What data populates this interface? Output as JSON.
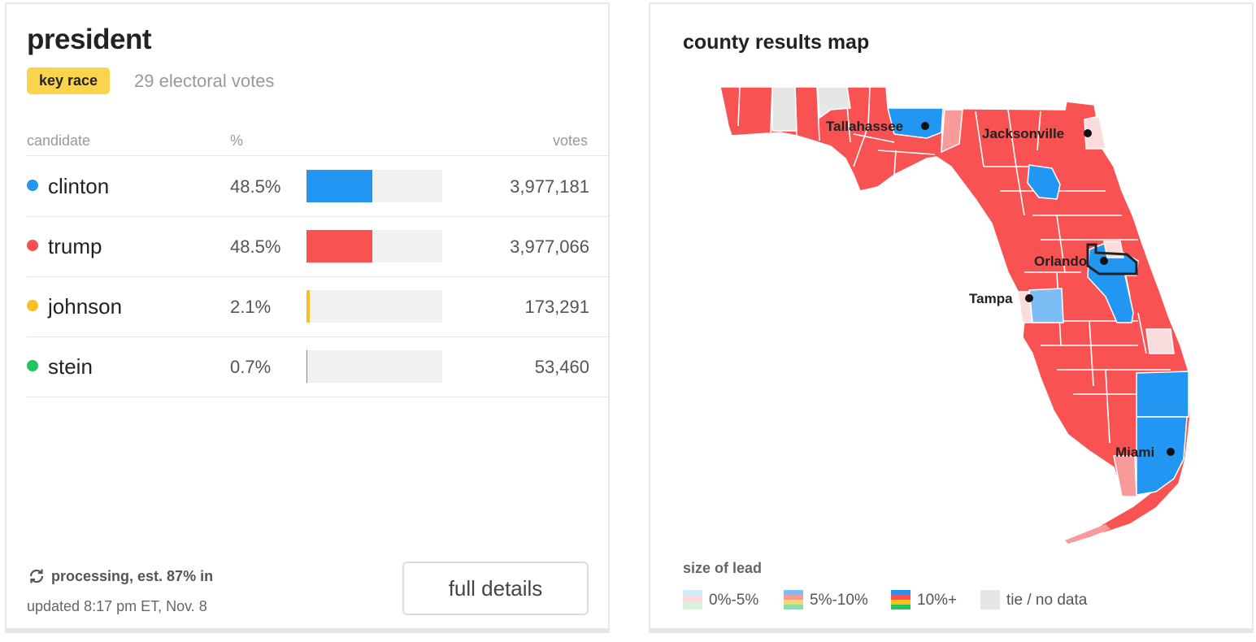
{
  "race": {
    "title": "president",
    "badge": "key race",
    "electoral_votes": "29 electoral votes"
  },
  "table": {
    "headers": {
      "candidate": "candidate",
      "percent": "%",
      "votes": "votes"
    },
    "candidates": [
      {
        "name": "clinton",
        "percent": "48.5%",
        "share": 0.485,
        "votes": "3,977,181",
        "color": "#2196f3"
      },
      {
        "name": "trump",
        "percent": "48.5%",
        "share": 0.485,
        "votes": "3,977,066",
        "color": "#f85252"
      },
      {
        "name": "johnson",
        "percent": "2.1%",
        "share": 0.021,
        "votes": "173,291",
        "color": "#fbbf24"
      },
      {
        "name": "stein",
        "percent": "0.7%",
        "share": 0.007,
        "votes": "53,460",
        "color": "#22c55e"
      }
    ]
  },
  "footer": {
    "status": "processing, est. 87% in",
    "updated": "updated 8:17 pm ET, Nov. 8",
    "details_button": "full details"
  },
  "map": {
    "title": "county results map",
    "cities": [
      "Tallahassee",
      "Jacksonville",
      "Orlando",
      "Tampa",
      "Miami"
    ],
    "legend_title": "size of lead",
    "legend": [
      "0%-5%",
      "5%-10%",
      "10%+",
      "tie / no data"
    ],
    "colors": {
      "rep_strong": "#f85252",
      "rep_mid": "#f99a9a",
      "rep_light": "#fadcdc",
      "dem_strong": "#2196f3",
      "dem_mid": "#7dbdf5",
      "dem_light": "#d6e9fb",
      "ind_strong": "#fbbf24",
      "ind_mid": "#fcd57a",
      "grn_strong": "#22c55e",
      "grn_mid": "#86e0a8",
      "grn_light": "#d3f3df",
      "tie": "#e6e6e6",
      "ind_light": "#fde9bb"
    },
    "icons": [
      "refresh-icon",
      "city-marker-icon"
    ]
  }
}
